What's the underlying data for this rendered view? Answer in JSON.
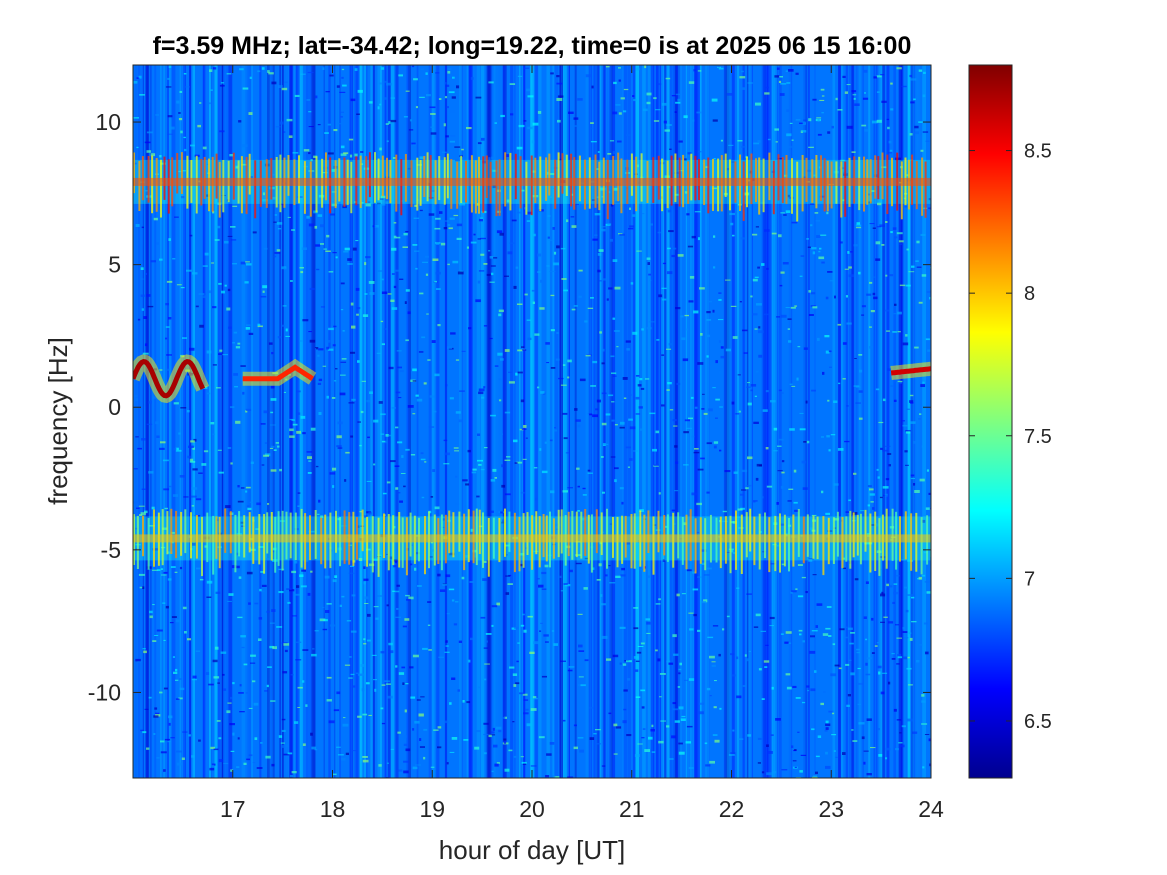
{
  "chart_data": {
    "type": "heatmap",
    "title": "f=3.59 MHz;  lat=-34.42; long=19.22, time=0 is at 2025 06 15 16:00",
    "xlabel": "hour of day [UT]",
    "ylabel": "frequency [Hz]",
    "xlim": [
      16,
      24
    ],
    "ylim": [
      -13,
      12
    ],
    "xticks": [
      17,
      18,
      19,
      20,
      21,
      22,
      23,
      24
    ],
    "xtick_labels": [
      "17",
      "18",
      "19",
      "20",
      "21",
      "22",
      "23",
      "24"
    ],
    "yticks": [
      10,
      5,
      0,
      -5,
      -10
    ],
    "ytick_labels": [
      "10",
      "5",
      "0",
      "-5",
      "-10"
    ],
    "colormap": "jet",
    "clim": [
      6.3,
      8.8
    ],
    "colorbar_ticks": [
      8.5,
      8,
      7.5,
      7,
      6.5
    ],
    "colorbar_tick_labels": [
      "8.5",
      "8",
      "7.5",
      "7",
      "6.5"
    ],
    "background_level": 6.9,
    "features": [
      {
        "description": "persistent band near +8 Hz",
        "x_range": [
          16,
          24
        ],
        "y": 7.9,
        "level": 8.3
      },
      {
        "description": "persistent band near -4.6 Hz",
        "x_range": [
          16,
          24
        ],
        "y": -4.6,
        "level": 8.0
      },
      {
        "description": "echo trace near 0-1 Hz",
        "x_range": [
          16,
          16.7
        ],
        "y": 1.0,
        "level": 8.7
      },
      {
        "description": "echo trace near 1 Hz",
        "x_range": [
          17.1,
          17.8
        ],
        "y": 1.0,
        "level": 8.4
      },
      {
        "description": "echo trace near 1.2 Hz",
        "x_range": [
          23.6,
          24
        ],
        "y": 1.2,
        "level": 8.6
      }
    ]
  }
}
